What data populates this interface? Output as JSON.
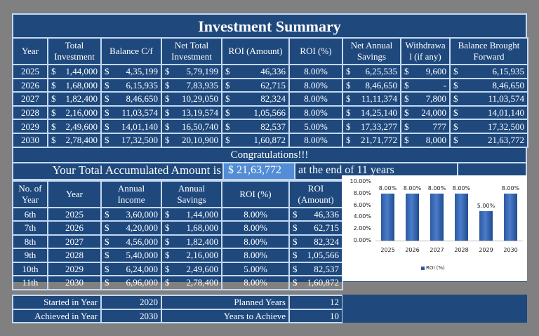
{
  "title": "Investment Summary",
  "main_table": {
    "headers": [
      "Year",
      "Total Investment",
      "Balance C/f",
      "Net Total Investment",
      "ROI (Amount)",
      "ROI (%)",
      "Net Annual Savings",
      "Withdrawal (if any)",
      "Balance Brought Forward"
    ],
    "header_display": [
      "Year",
      "Total Investment",
      "Balance C/f",
      "Net Total Investment",
      "ROI (Amount)",
      "ROI (%)",
      "Net Annual Savings",
      "Withdrawa l (if any)",
      "Balance Brought Forward"
    ],
    "currency_symbol": "$",
    "rows": [
      {
        "year": "2025",
        "total_investment": "1,44,000",
        "balance_cf": "4,35,199",
        "net_total_investment": "5,79,199",
        "roi_amount": "46,336",
        "roi_pct": "8.00%",
        "net_annual_savings": "6,25,535",
        "withdrawal": "9,600",
        "balance_bf": "6,15,935"
      },
      {
        "year": "2026",
        "total_investment": "1,68,000",
        "balance_cf": "6,15,935",
        "net_total_investment": "7,83,935",
        "roi_amount": "62,715",
        "roi_pct": "8.00%",
        "net_annual_savings": "8,46,650",
        "withdrawal": "-",
        "balance_bf": "8,46,650"
      },
      {
        "year": "2027",
        "total_investment": "1,82,400",
        "balance_cf": "8,46,650",
        "net_total_investment": "10,29,050",
        "roi_amount": "82,324",
        "roi_pct": "8.00%",
        "net_annual_savings": "11,11,374",
        "withdrawal": "7,800",
        "balance_bf": "11,03,574"
      },
      {
        "year": "2028",
        "total_investment": "2,16,000",
        "balance_cf": "11,03,574",
        "net_total_investment": "13,19,574",
        "roi_amount": "1,05,566",
        "roi_pct": "8.00%",
        "net_annual_savings": "14,25,140",
        "withdrawal": "24,000",
        "balance_bf": "14,01,140"
      },
      {
        "year": "2029",
        "total_investment": "2,49,600",
        "balance_cf": "14,01,140",
        "net_total_investment": "16,50,740",
        "roi_amount": "82,537",
        "roi_pct": "5.00%",
        "net_annual_savings": "17,33,277",
        "withdrawal": "777",
        "balance_bf": "17,32,500"
      },
      {
        "year": "2030",
        "total_investment": "2,78,400",
        "balance_cf": "17,32,500",
        "net_total_investment": "20,10,900",
        "roi_amount": "1,60,872",
        "roi_pct": "8.00%",
        "net_annual_savings": "21,71,772",
        "withdrawal": "8,000",
        "balance_bf": "21,63,772"
      }
    ]
  },
  "congrats": {
    "message": "Congratulations!!!",
    "accum_label": "Your Total Accumulated Amount is",
    "accum_value": "$  21,63,772",
    "accum_tail": "at the end of 11 years"
  },
  "year_table": {
    "headers": [
      "No. of Year",
      "Year",
      "Annual Income",
      "Annual Savings",
      "ROI (%)",
      "ROI (Amount)"
    ],
    "rows": [
      {
        "no": "6th",
        "year": "2025",
        "income": "3,60,000",
        "savings": "1,44,000",
        "roi_pct": "8.00%",
        "roi_amount": "46,336"
      },
      {
        "no": "7th",
        "year": "2026",
        "income": "4,20,000",
        "savings": "1,68,000",
        "roi_pct": "8.00%",
        "roi_amount": "62,715"
      },
      {
        "no": "8th",
        "year": "2027",
        "income": "4,56,000",
        "savings": "1,82,400",
        "roi_pct": "8.00%",
        "roi_amount": "82,324"
      },
      {
        "no": "9th",
        "year": "2028",
        "income": "5,40,000",
        "savings": "2,16,000",
        "roi_pct": "8.00%",
        "roi_amount": "1,05,566"
      },
      {
        "no": "10th",
        "year": "2029",
        "income": "6,24,000",
        "savings": "2,49,600",
        "roi_pct": "5.00%",
        "roi_amount": "82,537"
      },
      {
        "no": "11th",
        "year": "2030",
        "income": "6,96,000",
        "savings": "2,78,400",
        "roi_pct": "8.00%",
        "roi_amount": "1,60,872"
      }
    ]
  },
  "chart_data": {
    "type": "bar",
    "categories": [
      "2025",
      "2026",
      "2027",
      "2028",
      "2029",
      "2030"
    ],
    "series": [
      {
        "name": "ROI (%)",
        "values": [
          8.0,
          8.0,
          8.0,
          8.0,
          5.0,
          8.0
        ]
      }
    ],
    "data_labels": [
      "8.00%",
      "8.00%",
      "8.00%",
      "8.00%",
      "5.00%",
      "8.00%"
    ],
    "title": "",
    "xlabel": "",
    "ylabel": "",
    "yticks": [
      "0.00%",
      "2.00%",
      "4.00%",
      "6.00%",
      "8.00%",
      "10.00%"
    ],
    "ylim": [
      0,
      10
    ],
    "grid": false,
    "legend_position": "bottom",
    "bar_color": "#2c5aa0"
  },
  "summary": {
    "started_label": "Started in Year",
    "started_value": "2020",
    "planned_label": "Planned Years",
    "planned_value": "12",
    "achieved_label": "Achieved in Year",
    "achieved_value": "2030",
    "years_label": "Years to Achieve",
    "years_value": "10"
  },
  "colors": {
    "background": "#808080",
    "cell_fill": "#1f497d",
    "grid_line": "#c5d9f1",
    "highlight": "#538dd5"
  }
}
